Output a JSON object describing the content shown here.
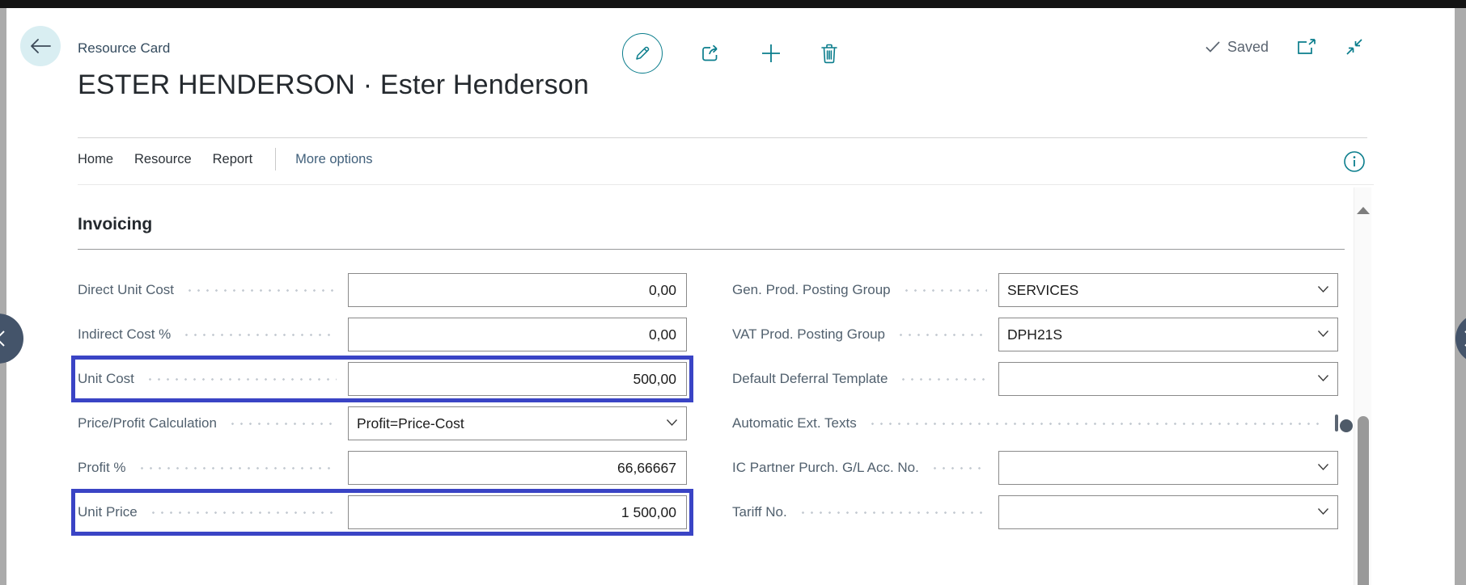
{
  "header": {
    "page_caption": "Resource Card",
    "title": "ESTER HENDERSON · Ester Henderson",
    "saved_label": "Saved",
    "actions": [
      {
        "name": "edit",
        "icon": "pencil-icon"
      },
      {
        "name": "share",
        "icon": "share-icon"
      },
      {
        "name": "new",
        "icon": "plus-icon"
      },
      {
        "name": "delete",
        "icon": "trash-icon"
      }
    ],
    "window_controls": [
      {
        "name": "open-in-new-window",
        "icon": "popout-icon"
      },
      {
        "name": "collapse",
        "icon": "collapse-icon"
      }
    ],
    "back_icon": "arrow-left-icon",
    "check_icon": "check-icon"
  },
  "menu": {
    "items": [
      "Home",
      "Resource",
      "Report"
    ],
    "more_options": "More options",
    "info_icon": "info-icon"
  },
  "section": {
    "title": "Invoicing"
  },
  "fields": {
    "left": [
      {
        "label": "Direct Unit Cost",
        "value": "0,00",
        "type": "number",
        "highlighted": false
      },
      {
        "label": "Indirect Cost %",
        "value": "0,00",
        "type": "number",
        "highlighted": false
      },
      {
        "label": "Unit Cost",
        "value": "500,00",
        "type": "number",
        "highlighted": true
      },
      {
        "label": "Price/Profit Calculation",
        "value": "Profit=Price-Cost",
        "type": "dropdown",
        "highlighted": false
      },
      {
        "label": "Profit %",
        "value": "66,66667",
        "type": "number",
        "highlighted": false
      },
      {
        "label": "Unit Price",
        "value": "1 500,00",
        "type": "number",
        "highlighted": true
      }
    ],
    "right": [
      {
        "label": "Gen. Prod. Posting Group",
        "value": "SERVICES",
        "type": "dropdown",
        "highlighted": false
      },
      {
        "label": "VAT Prod. Posting Group",
        "value": "DPH21S",
        "type": "dropdown",
        "highlighted": false
      },
      {
        "label": "Default Deferral Template",
        "value": "",
        "type": "dropdown",
        "highlighted": false
      },
      {
        "label": "Automatic Ext. Texts",
        "value": "Off",
        "type": "toggle",
        "highlighted": false
      },
      {
        "label": "IC Partner Purch. G/L Acc. No.",
        "value": "",
        "type": "dropdown",
        "highlighted": false
      },
      {
        "label": "Tariff No.",
        "value": "",
        "type": "dropdown",
        "highlighted": false
      }
    ]
  },
  "colors": {
    "accent_teal": "#0a7d8c",
    "highlight_blue": "#3a44c5",
    "label_gray": "#51606e",
    "paddle_slate": "#44546a",
    "top_bar": "#131313"
  }
}
